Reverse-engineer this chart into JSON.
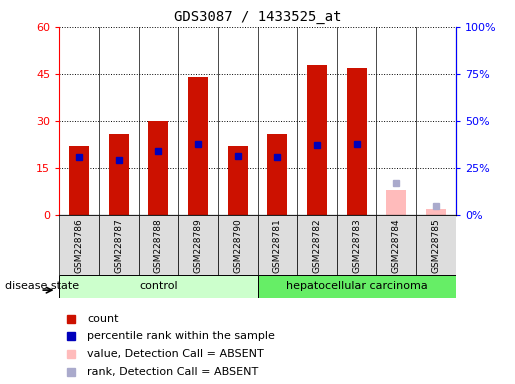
{
  "title": "GDS3087 / 1433525_at",
  "samples": [
    "GSM228786",
    "GSM228787",
    "GSM228788",
    "GSM228789",
    "GSM228790",
    "GSM228781",
    "GSM228782",
    "GSM228783",
    "GSM228784",
    "GSM228785"
  ],
  "groups": [
    "control",
    "control",
    "control",
    "control",
    "control",
    "hepatocellular carcinoma",
    "hepatocellular carcinoma",
    "hepatocellular carcinoma",
    "hepatocellular carcinoma",
    "hepatocellular carcinoma"
  ],
  "count_values": [
    22,
    26,
    30,
    44,
    22,
    26,
    48,
    47,
    null,
    null
  ],
  "count_absent": [
    null,
    null,
    null,
    null,
    null,
    null,
    null,
    null,
    8,
    2
  ],
  "rank_values": [
    31,
    29.5,
    34,
    38,
    31.5,
    31,
    37,
    38,
    null,
    null
  ],
  "rank_absent": [
    null,
    null,
    null,
    null,
    null,
    null,
    null,
    null,
    17,
    5
  ],
  "ylim_left": [
    0,
    60
  ],
  "ylim_right": [
    0,
    100
  ],
  "yticks_left": [
    0,
    15,
    30,
    45,
    60
  ],
  "ytick_labels_left": [
    "0",
    "15",
    "30",
    "45",
    "60"
  ],
  "yticks_right": [
    0,
    25,
    50,
    75,
    100
  ],
  "ytick_labels_right": [
    "0%",
    "25%",
    "50%",
    "75%",
    "100%"
  ],
  "bar_color_present": "#cc1100",
  "bar_color_absent": "#ffbbbb",
  "rank_color_present": "#0000bb",
  "rank_color_absent": "#aaaacc",
  "control_color": "#ccffcc",
  "hcc_color": "#66ee66",
  "sample_box_color": "#dddddd",
  "disease_state_label": "disease state",
  "control_label": "control",
  "hcc_label": "hepatocellular carcinoma",
  "legend_items": [
    {
      "label": "count",
      "color": "#cc1100"
    },
    {
      "label": "percentile rank within the sample",
      "color": "#0000bb"
    },
    {
      "label": "value, Detection Call = ABSENT",
      "color": "#ffbbbb"
    },
    {
      "label": "rank, Detection Call = ABSENT",
      "color": "#aaaacc"
    }
  ],
  "bar_width": 0.5
}
